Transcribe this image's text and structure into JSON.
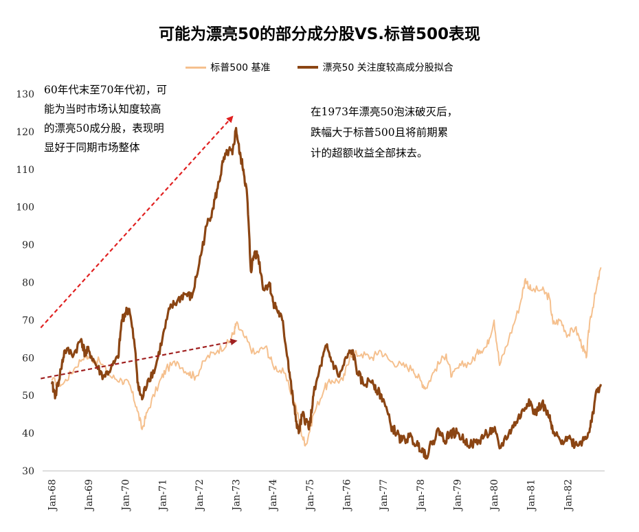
{
  "chart_data": {
    "type": "line",
    "title": "可能为漂亮50的部分成分股VS.标普500表现",
    "ylim": [
      30,
      130
    ],
    "yticks": [
      30,
      40,
      50,
      60,
      70,
      80,
      90,
      100,
      110,
      120,
      130
    ],
    "x_time_range": [
      1968.0,
      1982.9
    ],
    "xtick_labels": [
      "Jan-68",
      "Jan-69",
      "Jan-70",
      "Jan-71",
      "Jan-72",
      "Jan-73",
      "Jan-74",
      "Jan-75",
      "Jan-76",
      "Jan-77",
      "Jan-78",
      "Jan-79",
      "Jan-80",
      "Jan-81",
      "Jan-82"
    ],
    "series": [
      {
        "name": "标普500 基准",
        "color": "#F5C08E",
        "points": [
          [
            1968.0,
            54
          ],
          [
            1968.3,
            53
          ],
          [
            1968.6,
            57
          ],
          [
            1968.9,
            61
          ],
          [
            1969.0,
            60
          ],
          [
            1969.3,
            59
          ],
          [
            1969.6,
            55
          ],
          [
            1969.9,
            54
          ],
          [
            1970.1,
            53
          ],
          [
            1970.3,
            47
          ],
          [
            1970.45,
            41
          ],
          [
            1970.6,
            46
          ],
          [
            1970.9,
            53
          ],
          [
            1971.1,
            57
          ],
          [
            1971.4,
            59
          ],
          [
            1971.7,
            56
          ],
          [
            1971.9,
            55
          ],
          [
            1972.2,
            60
          ],
          [
            1972.5,
            62
          ],
          [
            1972.8,
            64
          ],
          [
            1972.95,
            67
          ],
          [
            1973.0,
            69
          ],
          [
            1973.2,
            66
          ],
          [
            1973.5,
            61
          ],
          [
            1973.8,
            63
          ],
          [
            1974.0,
            58
          ],
          [
            1974.3,
            56
          ],
          [
            1974.6,
            48
          ],
          [
            1974.8,
            39
          ],
          [
            1974.9,
            37
          ],
          [
            1975.1,
            45
          ],
          [
            1975.4,
            52
          ],
          [
            1975.6,
            54
          ],
          [
            1975.9,
            54
          ],
          [
            1976.1,
            61
          ],
          [
            1976.4,
            61
          ],
          [
            1976.7,
            60
          ],
          [
            1976.9,
            62
          ],
          [
            1977.2,
            59
          ],
          [
            1977.5,
            58
          ],
          [
            1977.8,
            57
          ],
          [
            1978.0,
            54
          ],
          [
            1978.15,
            52
          ],
          [
            1978.4,
            57
          ],
          [
            1978.7,
            61
          ],
          [
            1978.85,
            55
          ],
          [
            1979.1,
            58
          ],
          [
            1979.4,
            59
          ],
          [
            1979.6,
            62
          ],
          [
            1979.8,
            63
          ],
          [
            1980.0,
            70
          ],
          [
            1980.15,
            58
          ],
          [
            1980.4,
            65
          ],
          [
            1980.7,
            74
          ],
          [
            1980.85,
            81
          ],
          [
            1981.0,
            78
          ],
          [
            1981.3,
            78
          ],
          [
            1981.5,
            76
          ],
          [
            1981.6,
            69
          ],
          [
            1981.8,
            70
          ],
          [
            1982.0,
            66
          ],
          [
            1982.2,
            68
          ],
          [
            1982.4,
            63
          ],
          [
            1982.5,
            60
          ],
          [
            1982.6,
            70
          ],
          [
            1982.75,
            77
          ],
          [
            1982.9,
            84
          ]
        ]
      },
      {
        "name": "漂亮50 关注度较高成分股拟合",
        "color": "#8B4513",
        "points": [
          [
            1968.0,
            53
          ],
          [
            1968.1,
            50
          ],
          [
            1968.25,
            57
          ],
          [
            1968.35,
            62
          ],
          [
            1968.6,
            61
          ],
          [
            1968.8,
            65
          ],
          [
            1968.9,
            61
          ],
          [
            1969.0,
            62
          ],
          [
            1969.2,
            58
          ],
          [
            1969.4,
            55
          ],
          [
            1969.6,
            57
          ],
          [
            1969.8,
            60
          ],
          [
            1969.9,
            70
          ],
          [
            1970.0,
            72
          ],
          [
            1970.1,
            73
          ],
          [
            1970.25,
            63
          ],
          [
            1970.35,
            52
          ],
          [
            1970.45,
            49
          ],
          [
            1970.6,
            54
          ],
          [
            1970.8,
            57
          ],
          [
            1971.0,
            65
          ],
          [
            1971.2,
            73
          ],
          [
            1971.4,
            75
          ],
          [
            1971.6,
            77
          ],
          [
            1971.8,
            76
          ],
          [
            1972.0,
            85
          ],
          [
            1972.2,
            95
          ],
          [
            1972.35,
            99
          ],
          [
            1972.5,
            105
          ],
          [
            1972.65,
            112
          ],
          [
            1972.8,
            115
          ],
          [
            1972.9,
            114
          ],
          [
            1973.0,
            121
          ],
          [
            1973.1,
            114
          ],
          [
            1973.2,
            110
          ],
          [
            1973.3,
            103
          ],
          [
            1973.4,
            83
          ],
          [
            1973.5,
            88
          ],
          [
            1973.6,
            87
          ],
          [
            1973.75,
            78
          ],
          [
            1973.9,
            80
          ],
          [
            1974.0,
            75
          ],
          [
            1974.1,
            73
          ],
          [
            1974.25,
            70
          ],
          [
            1974.4,
            60
          ],
          [
            1974.5,
            52
          ],
          [
            1974.6,
            45
          ],
          [
            1974.7,
            40
          ],
          [
            1974.8,
            45
          ],
          [
            1974.9,
            43
          ],
          [
            1975.0,
            42
          ],
          [
            1975.1,
            50
          ],
          [
            1975.3,
            58
          ],
          [
            1975.45,
            63
          ],
          [
            1975.6,
            59
          ],
          [
            1975.8,
            55
          ],
          [
            1976.0,
            60
          ],
          [
            1976.15,
            62
          ],
          [
            1976.3,
            56
          ],
          [
            1976.45,
            53
          ],
          [
            1976.7,
            54
          ],
          [
            1976.85,
            51
          ],
          [
            1977.0,
            49
          ],
          [
            1977.2,
            42
          ],
          [
            1977.35,
            40
          ],
          [
            1977.5,
            38
          ],
          [
            1977.7,
            39
          ],
          [
            1977.9,
            37
          ],
          [
            1978.05,
            36
          ],
          [
            1978.15,
            34
          ],
          [
            1978.35,
            38
          ],
          [
            1978.5,
            41
          ],
          [
            1978.65,
            38
          ],
          [
            1978.8,
            40
          ],
          [
            1979.0,
            40
          ],
          [
            1979.2,
            38
          ],
          [
            1979.4,
            37
          ],
          [
            1979.6,
            38
          ],
          [
            1979.8,
            40
          ],
          [
            1980.0,
            41
          ],
          [
            1980.15,
            36
          ],
          [
            1980.4,
            40
          ],
          [
            1980.6,
            43
          ],
          [
            1980.8,
            46
          ],
          [
            1980.95,
            49
          ],
          [
            1981.1,
            45
          ],
          [
            1981.3,
            48
          ],
          [
            1981.5,
            44
          ],
          [
            1981.6,
            40
          ],
          [
            1981.8,
            38
          ],
          [
            1982.0,
            39
          ],
          [
            1982.2,
            37
          ],
          [
            1982.4,
            38
          ],
          [
            1982.55,
            40
          ],
          [
            1982.65,
            43
          ],
          [
            1982.75,
            50
          ],
          [
            1982.9,
            53
          ]
        ]
      }
    ],
    "annotations": {
      "left_lines": [
        "60年代末至70年代初，可",
        "能为当时市场认知度较高",
        "的漂亮50成分股，表现明",
        "显好于同期市场整体"
      ],
      "right_lines": [
        "在1973年漂亮50泡沫破灭后，",
        "跌幅大于标普500且将前期累",
        "计的超额收益全部抹去。"
      ]
    },
    "arrows": [
      {
        "from": [
          1967.7,
          68
        ],
        "to": [
          1972.9,
          124
        ],
        "color": "#E02020"
      },
      {
        "from": [
          1967.7,
          54.5
        ],
        "to": [
          1973.0,
          64.5
        ],
        "color": "#A02020"
      }
    ],
    "legend_position": "top-center",
    "grid": false
  }
}
